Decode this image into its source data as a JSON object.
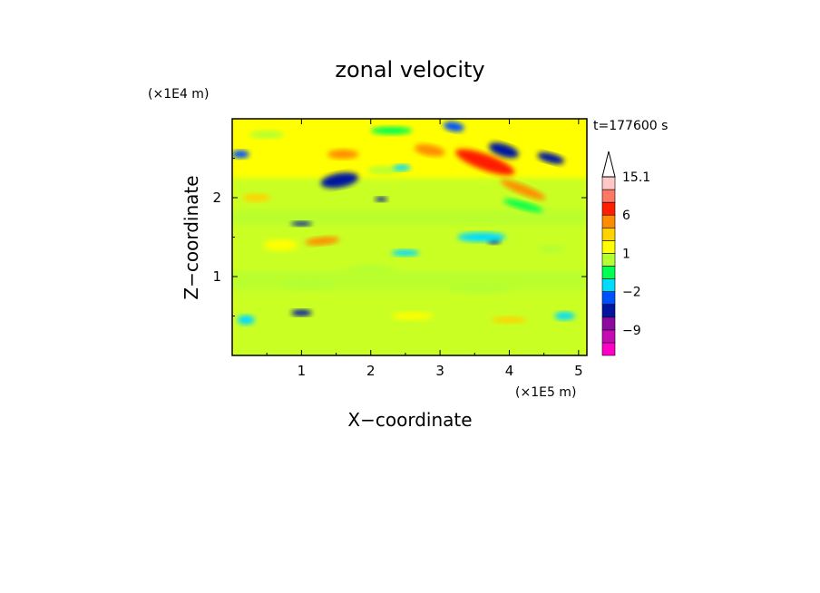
{
  "chart_data": {
    "type": "heatmap",
    "title": "zonal velocity",
    "xlabel": "X−coordinate",
    "ylabel": "Z−coordinate",
    "x_scale_label": "(×1E5 m)",
    "y_scale_label": "(×1E4 m)",
    "time_label": "t=177600 s",
    "x_ticks": [
      "1",
      "2",
      "3",
      "4",
      "5"
    ],
    "y_ticks": [
      "1",
      "2"
    ],
    "xlim": [
      0,
      5.12
    ],
    "ylim": [
      0,
      3.0
    ],
    "colorbar": {
      "labels": [
        "15.1",
        "6",
        "1",
        "−2",
        "−9"
      ],
      "levels": [
        -15,
        -12,
        -9,
        -6,
        -4,
        -2,
        -1,
        0,
        1,
        2,
        4,
        6,
        9,
        12,
        15.1
      ],
      "colors": [
        "#ff00c8",
        "#c80ab4",
        "#8c0aa0",
        "#0014a0",
        "#0050ff",
        "#00dcff",
        "#00ff50",
        "#b4ff32",
        "#ffff00",
        "#ffd200",
        "#ff8c00",
        "#ff1e00",
        "#ff7864",
        "#ffc8c8"
      ],
      "extend": "max"
    },
    "features": [
      {
        "x": 1.55,
        "z": 2.22,
        "w": 0.55,
        "h": 0.18,
        "value": -6,
        "angle": -10
      },
      {
        "x": 3.92,
        "z": 2.6,
        "w": 0.45,
        "h": 0.16,
        "value": -6,
        "angle": 18
      },
      {
        "x": 4.6,
        "z": 2.5,
        "w": 0.4,
        "h": 0.12,
        "value": -6,
        "angle": 15
      },
      {
        "x": 0.12,
        "z": 2.55,
        "w": 0.25,
        "h": 0.1,
        "value": -4,
        "angle": 0
      },
      {
        "x": 3.2,
        "z": 2.9,
        "w": 0.3,
        "h": 0.12,
        "value": -4,
        "angle": 10
      },
      {
        "x": 2.15,
        "z": 1.98,
        "w": 0.18,
        "h": 0.06,
        "value": -6,
        "angle": 0
      },
      {
        "x": 1.0,
        "z": 1.67,
        "w": 0.3,
        "h": 0.06,
        "value": -6,
        "angle": 0
      },
      {
        "x": 3.78,
        "z": 1.45,
        "w": 0.18,
        "h": 0.07,
        "value": -6,
        "angle": 0
      },
      {
        "x": 1.0,
        "z": 0.54,
        "w": 0.3,
        "h": 0.08,
        "value": -6,
        "angle": 0
      },
      {
        "x": 3.65,
        "z": 2.45,
        "w": 0.9,
        "h": 0.2,
        "value": 6,
        "angle": 20
      },
      {
        "x": 2.85,
        "z": 2.6,
        "w": 0.45,
        "h": 0.14,
        "value": 4,
        "angle": 10
      },
      {
        "x": 1.6,
        "z": 2.55,
        "w": 0.45,
        "h": 0.12,
        "value": 4,
        "angle": 0
      },
      {
        "x": 4.2,
        "z": 2.1,
        "w": 0.7,
        "h": 0.12,
        "value": 4,
        "angle": 22
      },
      {
        "x": 1.3,
        "z": 1.45,
        "w": 0.5,
        "h": 0.1,
        "value": 4,
        "angle": -5
      },
      {
        "x": 4.0,
        "z": 0.45,
        "w": 0.5,
        "h": 0.08,
        "value": 2,
        "angle": 0
      },
      {
        "x": 0.35,
        "z": 2.0,
        "w": 0.4,
        "h": 0.1,
        "value": 2,
        "angle": 0
      },
      {
        "x": 2.6,
        "z": 0.5,
        "w": 0.6,
        "h": 0.1,
        "value": 1,
        "angle": 0
      },
      {
        "x": 2.2,
        "z": 2.35,
        "w": 0.5,
        "h": 0.1,
        "value": 0,
        "angle": 0
      },
      {
        "x": 0.7,
        "z": 1.4,
        "w": 0.5,
        "h": 0.15,
        "value": 1,
        "angle": 0
      },
      {
        "x": 3.6,
        "z": 1.5,
        "w": 0.7,
        "h": 0.12,
        "value": -2,
        "angle": 0
      },
      {
        "x": 2.5,
        "z": 1.3,
        "w": 0.4,
        "h": 0.08,
        "value": -2,
        "angle": 0
      },
      {
        "x": 0.2,
        "z": 0.45,
        "w": 0.25,
        "h": 0.12,
        "value": -2,
        "angle": 0
      },
      {
        "x": 4.8,
        "z": 0.5,
        "w": 0.3,
        "h": 0.1,
        "value": -2,
        "angle": 0
      },
      {
        "x": 2.45,
        "z": 2.38,
        "w": 0.25,
        "h": 0.08,
        "value": -2,
        "angle": 0
      },
      {
        "x": 2.3,
        "z": 2.85,
        "w": 0.6,
        "h": 0.1,
        "value": -1,
        "angle": 0
      },
      {
        "x": 4.2,
        "z": 1.9,
        "w": 0.6,
        "h": 0.1,
        "value": -1,
        "angle": 15
      },
      {
        "x": 1.1,
        "z": 0.9,
        "w": 0.8,
        "h": 0.12,
        "value": 0,
        "angle": 0
      },
      {
        "x": 3.6,
        "z": 0.85,
        "w": 0.9,
        "h": 0.12,
        "value": 0,
        "angle": 0
      },
      {
        "x": 2.0,
        "z": 1.1,
        "w": 0.7,
        "h": 0.1,
        "value": 0,
        "angle": 0
      },
      {
        "x": 0.5,
        "z": 2.8,
        "w": 0.5,
        "h": 0.1,
        "value": 0,
        "angle": 0
      },
      {
        "x": 4.6,
        "z": 1.35,
        "w": 0.4,
        "h": 0.1,
        "value": 0,
        "angle": 0
      }
    ]
  }
}
